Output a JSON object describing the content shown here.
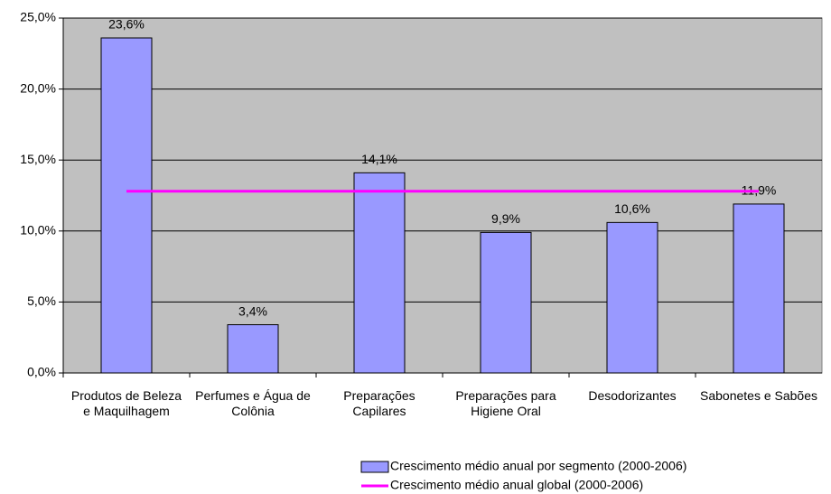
{
  "chart_data": {
    "type": "bar",
    "categories": [
      "Produtos de Beleza e Maquilhagem",
      "Perfumes e Água de Colônia",
      "Preparações Capilares",
      "Preparações para Higiene Oral",
      "Desodorizantes",
      "Sabonetes e Sabões"
    ],
    "series": [
      {
        "name": "Crescimento médio anual por segmento (2000-2006)",
        "type": "bar",
        "color": "#9999ff",
        "values": [
          23.6,
          3.4,
          14.1,
          9.9,
          10.6,
          11.9
        ],
        "value_labels": [
          "23,6%",
          "3,4%",
          "14,1%",
          "9,9%",
          "10,6%",
          "11,9%"
        ]
      },
      {
        "name": "Crescimento médio anual global (2000-2006)",
        "type": "line",
        "color": "#ff00ff",
        "values": [
          12.8,
          12.8,
          12.8,
          12.8,
          12.8,
          12.8
        ]
      }
    ],
    "ylim": [
      0,
      25
    ],
    "yticks": [
      {
        "value": 0,
        "label": "0,0%"
      },
      {
        "value": 5,
        "label": "5,0%"
      },
      {
        "value": 10,
        "label": "10,0%"
      },
      {
        "value": 15,
        "label": "15,0%"
      },
      {
        "value": 20,
        "label": "20,0%"
      },
      {
        "value": 25,
        "label": "25,0%"
      }
    ],
    "grid": true
  }
}
